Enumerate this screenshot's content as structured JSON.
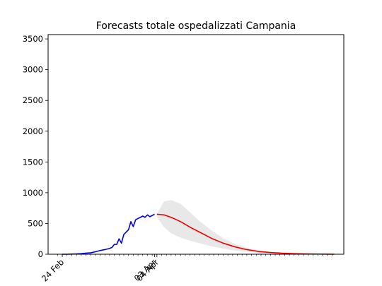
{
  "chart_data": {
    "type": "line",
    "title": "Forecasts totale ospedalizzati Campania",
    "xlabel": "",
    "ylabel": "",
    "ylim": [
      0,
      3570
    ],
    "y_ticks": [
      0,
      500,
      1000,
      1500,
      2000,
      2500,
      3000,
      3500
    ],
    "x_tick_labels": [
      {
        "date": "2020-02-24",
        "label": "24 Feb"
      },
      {
        "date": "2020-04-03",
        "label": "03 Apr"
      },
      {
        "date": "2020-04-04",
        "label": "04 Apr"
      }
    ],
    "xlim": [
      "2020-02-18",
      "2020-06-22"
    ],
    "minor_tick_start": "2020-02-22",
    "minor_tick_end": "2020-06-18",
    "minor_tick_step_days": 2,
    "grid": false,
    "legend": "none",
    "colors": {
      "observed": "#0000dd",
      "forecast": "#ee0000",
      "band": "#e8e8e8"
    },
    "series": [
      {
        "role": "observed",
        "color": "#0000dd",
        "x": [
          "2020-02-24",
          "2020-02-26",
          "2020-02-28",
          "2020-03-01",
          "2020-03-03",
          "2020-03-05",
          "2020-03-07",
          "2020-03-09",
          "2020-03-11",
          "2020-03-13",
          "2020-03-15",
          "2020-03-16",
          "2020-03-17",
          "2020-03-18",
          "2020-03-19",
          "2020-03-20",
          "2020-03-21",
          "2020-03-22",
          "2020-03-23",
          "2020-03-24",
          "2020-03-25",
          "2020-03-26",
          "2020-03-27",
          "2020-03-28",
          "2020-03-29",
          "2020-03-30",
          "2020-03-31",
          "2020-04-01",
          "2020-04-02",
          "2020-04-03"
        ],
        "values": [
          0,
          0,
          2,
          5,
          10,
          18,
          22,
          40,
          60,
          75,
          95,
          110,
          160,
          160,
          250,
          180,
          320,
          360,
          400,
          530,
          450,
          560,
          580,
          600,
          620,
          600,
          640,
          610,
          630,
          650
        ]
      },
      {
        "role": "forecast",
        "color": "#ee0000",
        "x": [
          "2020-04-04",
          "2020-04-07",
          "2020-04-10",
          "2020-04-14",
          "2020-04-18",
          "2020-04-22",
          "2020-04-27",
          "2020-05-02",
          "2020-05-07",
          "2020-05-12",
          "2020-05-17",
          "2020-05-22",
          "2020-05-27",
          "2020-06-01",
          "2020-06-06",
          "2020-06-11",
          "2020-06-16",
          "2020-06-18"
        ],
        "values": [
          650,
          640,
          600,
          530,
          440,
          360,
          260,
          180,
          120,
          75,
          45,
          28,
          16,
          9,
          5,
          3,
          1,
          0
        ]
      },
      {
        "role": "band",
        "color": "#e8e8e8",
        "x": [
          "2020-04-04",
          "2020-04-07",
          "2020-04-10",
          "2020-04-14",
          "2020-04-18",
          "2020-04-22",
          "2020-04-27",
          "2020-05-02",
          "2020-05-07",
          "2020-05-12",
          "2020-05-17",
          "2020-05-22",
          "2020-05-27",
          "2020-06-01",
          "2020-06-06",
          "2020-06-11",
          "2020-06-16",
          "2020-06-18"
        ],
        "upper": [
          660,
          860,
          880,
          820,
          680,
          540,
          390,
          260,
          170,
          105,
          60,
          35,
          20,
          11,
          6,
          3,
          1,
          0
        ],
        "lower": [
          600,
          440,
          340,
          270,
          220,
          180,
          130,
          90,
          60,
          40,
          25,
          15,
          9,
          5,
          3,
          1,
          0,
          0
        ]
      }
    ]
  }
}
